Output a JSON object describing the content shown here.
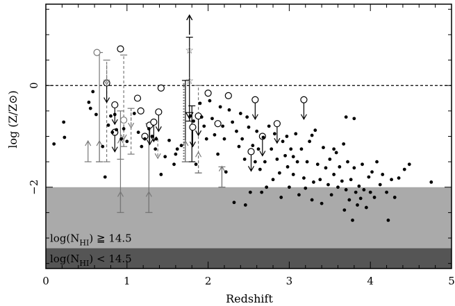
{
  "chart_data": {
    "type": "scatter",
    "xlabel": "Redshift",
    "ylabel": "log (Z/Z⊙)",
    "xlim": [
      0,
      5
    ],
    "ylim": [
      -3.6,
      1.6
    ],
    "xticks": [
      "0",
      "1",
      "2",
      "3",
      "4",
      "5"
    ],
    "yticks": [
      "0",
      "−2"
    ],
    "ytick_values": [
      0,
      -2
    ],
    "reference_line_y": 0,
    "bands": [
      {
        "label": "log(N",
        "sub": "HI",
        "rel": " ≧ 14.5",
        "y_top": -2.0,
        "y_bottom": -3.2,
        "color": "#aaaaaa"
      },
      {
        "label": "log(N",
        "sub": "HI",
        "rel": " < 14.5",
        "y_top": -3.2,
        "y_bottom": -3.6,
        "color": "#555555"
      }
    ],
    "dots": [
      [
        0.1,
        -1.15
      ],
      [
        0.22,
        -0.72
      ],
      [
        0.23,
        -1.02
      ],
      [
        0.53,
        -0.33
      ],
      [
        0.55,
        -0.45
      ],
      [
        0.58,
        -0.12
      ],
      [
        0.62,
        -0.57
      ],
      [
        0.7,
        -1.2
      ],
      [
        0.73,
        -1.8
      ],
      [
        0.77,
        -0.78
      ],
      [
        0.8,
        -0.6
      ],
      [
        0.82,
        -0.92
      ],
      [
        0.85,
        -0.57
      ],
      [
        0.87,
        -0.87
      ],
      [
        0.93,
        -1.05
      ],
      [
        0.96,
        -0.85
      ],
      [
        1.0,
        -1.1
      ],
      [
        1.09,
        -0.55
      ],
      [
        1.18,
        -1.2
      ],
      [
        1.22,
        -1.05
      ],
      [
        1.27,
        -0.85
      ],
      [
        1.31,
        -1.0
      ],
      [
        1.36,
        -1.05
      ],
      [
        1.42,
        -1.75
      ],
      [
        1.47,
        -1.4
      ],
      [
        1.52,
        -1.08
      ],
      [
        1.58,
        -1.55
      ],
      [
        1.62,
        -1.25
      ],
      [
        1.67,
        -1.18
      ],
      [
        1.78,
        -0.6
      ],
      [
        1.82,
        -0.7
      ],
      [
        1.85,
        -1.55
      ],
      [
        1.9,
        -0.35
      ],
      [
        1.92,
        -0.62
      ],
      [
        1.95,
        -0.8
      ],
      [
        1.98,
        -1.05
      ],
      [
        2.02,
        -0.3
      ],
      [
        2.05,
        -0.65
      ],
      [
        2.08,
        -0.97
      ],
      [
        2.12,
        -1.35
      ],
      [
        2.15,
        -0.42
      ],
      [
        2.18,
        -0.8
      ],
      [
        2.2,
        -1.05
      ],
      [
        2.22,
        -1.7
      ],
      [
        2.26,
        -0.48
      ],
      [
        2.3,
        -0.72
      ],
      [
        2.32,
        -2.3
      ],
      [
        2.35,
        -0.9
      ],
      [
        2.38,
        -1.2
      ],
      [
        2.4,
        -0.55
      ],
      [
        2.42,
        -1.05
      ],
      [
        2.45,
        -1.45
      ],
      [
        2.46,
        -2.35
      ],
      [
        2.48,
        -0.62
      ],
      [
        2.5,
        -0.82
      ],
      [
        2.52,
        -2.1
      ],
      [
        2.55,
        -1.18
      ],
      [
        2.58,
        -1.5
      ],
      [
        2.6,
        -0.9
      ],
      [
        2.62,
        -1.25
      ],
      [
        2.64,
        -1.65
      ],
      [
        2.66,
        -2.1
      ],
      [
        2.68,
        -1.02
      ],
      [
        2.7,
        -1.5
      ],
      [
        2.72,
        -2.0
      ],
      [
        2.75,
        -0.8
      ],
      [
        2.78,
        -1.25
      ],
      [
        2.8,
        -1.85
      ],
      [
        2.82,
        -0.95
      ],
      [
        2.85,
        -1.45
      ],
      [
        2.88,
        -1.72
      ],
      [
        2.9,
        -2.2
      ],
      [
        2.92,
        -1.1
      ],
      [
        2.95,
        -1.38
      ],
      [
        2.98,
        -1.6
      ],
      [
        3.0,
        -2.0
      ],
      [
        3.02,
        -1.25
      ],
      [
        3.05,
        -1.75
      ],
      [
        3.08,
        -0.95
      ],
      [
        3.1,
        -1.5
      ],
      [
        3.12,
        -2.15
      ],
      [
        3.15,
        -1.25
      ],
      [
        3.18,
        -1.82
      ],
      [
        3.2,
        -2.02
      ],
      [
        3.22,
        -1.5
      ],
      [
        3.25,
        -1.1
      ],
      [
        3.28,
        -2.25
      ],
      [
        3.3,
        -1.9
      ],
      [
        3.32,
        -0.88
      ],
      [
        3.35,
        -1.55
      ],
      [
        3.38,
        -1.85
      ],
      [
        3.4,
        -2.32
      ],
      [
        3.42,
        -1.22
      ],
      [
        3.45,
        -1.62
      ],
      [
        3.48,
        -1.95
      ],
      [
        3.5,
        -1.45
      ],
      [
        3.52,
        -2.15
      ],
      [
        3.55,
        -1.75
      ],
      [
        3.58,
        -1.32
      ],
      [
        3.6,
        -2.0
      ],
      [
        3.62,
        -1.6
      ],
      [
        3.65,
        -1.88
      ],
      [
        3.67,
        -1.15
      ],
      [
        3.68,
        -2.45
      ],
      [
        3.7,
        -2.05
      ],
      [
        3.72,
        -1.5
      ],
      [
        3.74,
        -2.25
      ],
      [
        3.76,
        -1.85
      ],
      [
        3.78,
        -2.65
      ],
      [
        3.8,
        -1.62
      ],
      [
        3.82,
        -2.1
      ],
      [
        3.84,
        -2.35
      ],
      [
        3.86,
        -1.98
      ],
      [
        3.88,
        -2.22
      ],
      [
        3.9,
        -1.55
      ],
      [
        3.92,
        -2.05
      ],
      [
        3.95,
        -2.4
      ],
      [
        3.98,
        -1.8
      ],
      [
        4.0,
        -2.1
      ],
      [
        4.02,
        -1.7
      ],
      [
        4.05,
        -2.2
      ],
      [
        4.08,
        -1.5
      ],
      [
        4.12,
        -1.95
      ],
      [
        4.15,
        -1.75
      ],
      [
        4.2,
        -2.1
      ],
      [
        4.22,
        -2.65
      ],
      [
        4.26,
        -1.85
      ],
      [
        4.3,
        -2.2
      ],
      [
        4.35,
        -1.82
      ],
      [
        4.42,
        -1.65
      ],
      [
        4.48,
        -1.55
      ],
      [
        4.75,
        -1.9
      ],
      [
        3.55,
        -1.25
      ],
      [
        3.28,
        -0.98
      ],
      [
        3.05,
        -1.4
      ],
      [
        2.97,
        -1.0
      ],
      [
        1.14,
        -0.92
      ],
      [
        1.35,
        -1.25
      ],
      [
        1.6,
        -1.35
      ],
      [
        3.7,
        -0.62
      ],
      [
        3.8,
        -0.65
      ]
    ],
    "limits": [
      {
        "x": 0.63,
        "y": 0.65,
        "ring": true,
        "arrow": "none",
        "color": "#777777",
        "dashed": false
      },
      {
        "x": 0.75,
        "y": 0.05,
        "ring": true,
        "arrow": "down",
        "color": "#000000",
        "dashed": false
      },
      {
        "x": 0.85,
        "y": -0.38,
        "ring": true,
        "arrow": "down",
        "color": "#000000",
        "dashed": false
      },
      {
        "x": 0.85,
        "y": -0.92,
        "ring": true,
        "arrow": "down",
        "color": "#000000",
        "dashed": false
      },
      {
        "x": 0.92,
        "y": 0.72,
        "ring": true,
        "arrow": "none",
        "color": "#000000",
        "dashed": false
      },
      {
        "x": 0.96,
        "y": -0.68,
        "ring": true,
        "arrow": "down",
        "color": "#777777",
        "dashed": true
      },
      {
        "x": 1.13,
        "y": -0.25,
        "ring": true,
        "arrow": "none",
        "color": "#000000",
        "dashed": false
      },
      {
        "x": 1.17,
        "y": -0.5,
        "ring": true,
        "arrow": "none",
        "color": "#000000",
        "dashed": false
      },
      {
        "x": 1.22,
        "y": -1.0,
        "ring": true,
        "arrow": "none",
        "color": "#000000",
        "dashed": false
      },
      {
        "x": 1.28,
        "y": -0.78,
        "ring": true,
        "arrow": "down",
        "color": "#000000",
        "dashed": false
      },
      {
        "x": 1.33,
        "y": -0.72,
        "ring": true,
        "arrow": "down",
        "color": "#000000",
        "dashed": false
      },
      {
        "x": 1.39,
        "y": -0.52,
        "ring": true,
        "arrow": "down",
        "color": "#000000",
        "dashed": false
      },
      {
        "x": 1.42,
        "y": -0.05,
        "ring": true,
        "arrow": "none",
        "color": "#000000",
        "dashed": false
      },
      {
        "x": 1.81,
        "y": -0.82,
        "ring": true,
        "arrow": "down",
        "color": "#000000",
        "dashed": false
      },
      {
        "x": 1.88,
        "y": -0.6,
        "ring": true,
        "arrow": "down",
        "color": "#000000",
        "dashed": false
      },
      {
        "x": 2.0,
        "y": -0.15,
        "ring": true,
        "arrow": "none",
        "color": "#000000",
        "dashed": false
      },
      {
        "x": 2.12,
        "y": -0.75,
        "ring": true,
        "arrow": "none",
        "color": "#000000",
        "dashed": false
      },
      {
        "x": 2.25,
        "y": -0.2,
        "ring": true,
        "arrow": "none",
        "color": "#000000",
        "dashed": false
      },
      {
        "x": 2.53,
        "y": -1.3,
        "ring": true,
        "arrow": "down",
        "color": "#000000",
        "dashed": false
      },
      {
        "x": 2.58,
        "y": -0.28,
        "ring": true,
        "arrow": "down",
        "color": "#000000",
        "dashed": false
      },
      {
        "x": 2.67,
        "y": -1.0,
        "ring": true,
        "arrow": "down",
        "color": "#000000",
        "dashed": false
      },
      {
        "x": 2.85,
        "y": -0.75,
        "ring": true,
        "arrow": "down",
        "color": "#000000",
        "dashed": false
      },
      {
        "x": 3.18,
        "y": -0.28,
        "ring": true,
        "arrow": "down",
        "color": "#000000",
        "dashed": false
      },
      {
        "x": 0.52,
        "y": -1.5,
        "ring": false,
        "arrow": "up",
        "color": "#777777",
        "dashed": false
      },
      {
        "x": 0.66,
        "y": -1.5,
        "ring": false,
        "arrow": "up",
        "color": "#777777",
        "dashed": false
      },
      {
        "x": 0.92,
        "y": -1.45,
        "ring": false,
        "arrow": "up",
        "color": "#777777",
        "dashed": false
      },
      {
        "x": 0.92,
        "y": -2.5,
        "ring": false,
        "arrow": "up",
        "color": "#777777",
        "dashed": false
      },
      {
        "x": 1.27,
        "y": -2.5,
        "ring": false,
        "arrow": "up",
        "color": "#777777",
        "dashed": false
      },
      {
        "x": 1.38,
        "y": -1.05,
        "ring": false,
        "arrow": "down",
        "color": "#777777",
        "dashed": true
      },
      {
        "x": 1.72,
        "y": -1.5,
        "ring": false,
        "arrow": "up",
        "color": "#777777",
        "dashed": false
      },
      {
        "x": 1.88,
        "y": -1.72,
        "ring": false,
        "arrow": "up",
        "color": "#777777",
        "dashed": true
      },
      {
        "x": 2.17,
        "y": -2.0,
        "ring": false,
        "arrow": "up",
        "color": "#777777",
        "dashed": false
      },
      {
        "x": 1.05,
        "y": -0.45,
        "ring": false,
        "arrow": "down",
        "color": "#777777",
        "dashed": true
      },
      {
        "x": 0.75,
        "y": 0.4,
        "ring": false,
        "arrow": "down",
        "color": "#777777",
        "dashed": true
      }
    ],
    "errorbars": [
      {
        "x": 0.66,
        "y_low": -1.5,
        "y_high": 0.65,
        "color": "#777777",
        "dashed": false
      },
      {
        "x": 0.75,
        "y_low": -1.5,
        "y_high": 0.5,
        "color": "#777777",
        "dashed": true
      },
      {
        "x": 0.92,
        "y_low": -2.5,
        "y_high": -0.5,
        "color": "#777777",
        "dashed": false
      },
      {
        "x": 0.96,
        "y_low": -1.2,
        "y_high": 0.6,
        "color": "#777777",
        "dashed": true
      },
      {
        "x": 1.05,
        "y_low": -1.35,
        "y_high": -0.45,
        "color": "#777777",
        "dashed": true
      },
      {
        "x": 1.27,
        "y_low": -2.5,
        "y_high": -0.75,
        "color": "#777777",
        "dashed": false
      },
      {
        "x": 1.72,
        "y_low": -1.5,
        "y_high": 0.1,
        "color": "#000000",
        "dashed": false
      },
      {
        "x": 1.77,
        "y_low": -0.7,
        "y_high": 0.95,
        "color": "#000000",
        "dashed": false
      },
      {
        "x": 1.8,
        "y_low": -1.5,
        "y_high": -0.4,
        "color": "#000000",
        "dashed": false
      },
      {
        "x": 1.88,
        "y_low": -1.72,
        "y_high": 0.0,
        "color": "#777777",
        "dashed": true
      },
      {
        "x": 2.17,
        "y_low": -2.0,
        "y_high": -1.6,
        "color": "#777777",
        "dashed": false
      }
    ],
    "dotted_line": {
      "x": 1.7,
      "y_low": -1.45,
      "y_high": 0.05
    },
    "stars": [
      {
        "x": 1.77,
        "y": 0.7
      },
      {
        "x": 1.77,
        "y": 0.1
      }
    ],
    "triangles_down": [
      {
        "x": 1.77,
        "y": -0.6
      }
    ],
    "top_arrow": {
      "x": 1.77,
      "y": 1.0
    }
  }
}
